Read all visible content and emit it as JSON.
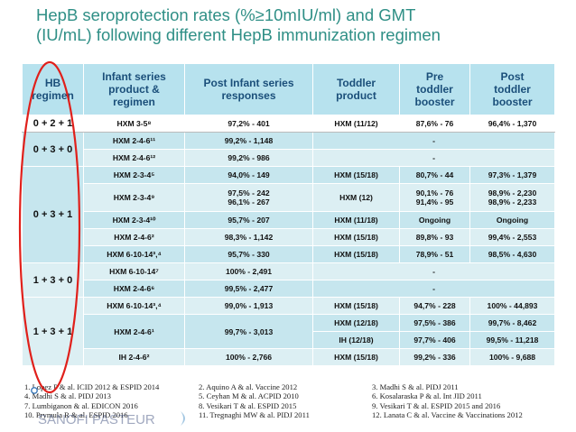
{
  "title": "HepB seroprotection rates (%≥10mIU/ml) and GMT\n(IU/mL) following different HepB immunization regimen",
  "headers": [
    "HB\nregimen",
    "Infant series\nproduct &\nregimen",
    "Post Infant series\nresponses",
    "Toddler\nproduct",
    "Pre\ntoddler\nbooster",
    "Post\ntoddler\nbooster"
  ],
  "rows": [
    {
      "reg": "0 + 2 + 1",
      "prod": "HXM 3-5⁸",
      "post": "97,2% - 401",
      "tod": "HXM (11/12)",
      "pre": "87,6% - 76",
      "postt": "96,4% - 1,370"
    },
    {
      "reg": "0 + 3 + 0",
      "prod": "HXM 2-4-6¹¹",
      "post": "99,2% - 1,148",
      "merged": "-"
    },
    {
      "prod": "HXM 2-4-6¹²",
      "post": "99,2% - 986",
      "merged": "-"
    },
    {
      "reg": "0 + 3 + 1",
      "prod": "HXM 2-3-4⁵",
      "post": "94,0% - 149",
      "tod": "HXM (15/18)",
      "pre": "80,7% - 44",
      "postt": "97,3% - 1,379"
    },
    {
      "prod": "HXM 2-3-4⁹",
      "post": "97,5% - 242\n96,1% - 267",
      "tod": "HXM (12)",
      "pre": "90,1% - 76\n91,4% - 95",
      "postt": "98,9% - 2,230\n98,9% - 2,233"
    },
    {
      "prod": "HXM 2-3-4¹⁰",
      "post": "95,7% - 207",
      "tod": "HXM (11/18)",
      "pre": "Ongoing",
      "postt": "Ongoing"
    },
    {
      "prod": "HXM 2-4-6²",
      "post": "98,3% - 1,142",
      "tod": "HXM (15/18)",
      "pre": "89,8% - 93",
      "postt": "99,4% - 2,553"
    },
    {
      "prod": "HXM 6-10-14³,⁴",
      "post": "95,7% - 330",
      "tod": "HXM (15/18)",
      "pre": "78,9% - 51",
      "postt": "98,5% - 4,630"
    },
    {
      "reg": "1 + 3 + 0",
      "prod": "HXM 6-10-14⁷",
      "post": "100% - 2,491",
      "merged": "-"
    },
    {
      "prod": "HXM 2-4-6⁶",
      "post": "99,5% - 2,477",
      "merged": "-"
    },
    {
      "reg": "1 + 3 + 1",
      "prod": "HXM 6-10-14³,⁴",
      "post": "99,0% - 1,913",
      "tod": "HXM (15/18)",
      "pre": "94,7% - 228",
      "postt": "100% - 44,893"
    },
    {
      "prod": "HXM 2-4-6¹",
      "post": "99,7% - 3,013",
      "tod": "HXM (12/18)",
      "pre": "97,5% - 386",
      "postt": "99,7% - 8,462"
    },
    {
      "tod": "IH (12/18)",
      "pre": "97,7% - 406",
      "postt": "99,5% - 11,218"
    },
    {
      "prod": "IH 2-4-6²",
      "post": "100% - 2,766",
      "tod": "HXM (15/18)",
      "pre": "99,2% - 336",
      "postt": "100% - 9,688"
    }
  ],
  "references": [
    [
      "1. Lopez P & al. ICID 2012 & ESPID 2014",
      "2. Aquino A & al. Vaccine 2012",
      "3. Madhi S & al. PIDJ 2011"
    ],
    [
      "4. Madhi S & al. PIDJ 2013",
      "5. Ceyhan M & al. ACPID 2010",
      "6. Kosalaraska P & al. Int JID 2011"
    ],
    [
      "7. Lumbiganon & al. EDICON 2016",
      "8. Vesikari T & al. ESPID 2015",
      "9. Vesikari T & al. ESPID 2015 and 2016"
    ],
    [
      "10. Prymula R & al. ESPID 2016",
      "11. Tregnaghi MW & al. PIDJ 2011",
      "12. Lanata C & al. Vaccine & Vaccinations 2012"
    ]
  ],
  "logo_text": "SANOFI PASTEUR",
  "colors": {
    "title": "#2f8f86",
    "header_bg": "#b7e2ee",
    "cell_bg": "#dceff3",
    "alt_bg": "#c6e6ee",
    "highlight": "#e0201b"
  }
}
